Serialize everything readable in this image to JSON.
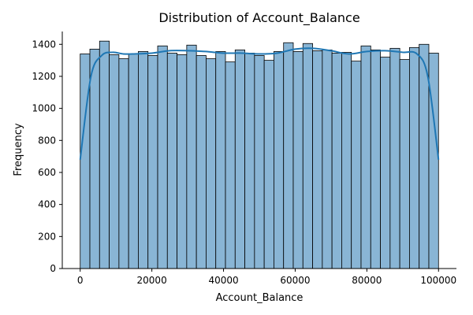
{
  "chart_data": {
    "type": "bar",
    "title": "Distribution of Account_Balance",
    "xlabel": "Account_Balance",
    "ylabel": "Frequency",
    "xlim": [
      -5000,
      105000
    ],
    "ylim": [
      0,
      1480
    ],
    "x_ticks": [
      0,
      20000,
      40000,
      60000,
      80000,
      100000
    ],
    "x_tick_labels": [
      "0",
      "20000",
      "40000",
      "60000",
      "80000",
      "100000"
    ],
    "y_ticks": [
      0,
      200,
      400,
      600,
      800,
      1000,
      1200,
      1400
    ],
    "y_tick_labels": [
      "0",
      "200",
      "400",
      "600",
      "800",
      "1000",
      "1200",
      "1400"
    ],
    "bin_start": 0,
    "bin_end": 100000,
    "values": [
      1340,
      1370,
      1420,
      1335,
      1310,
      1340,
      1355,
      1330,
      1390,
      1345,
      1335,
      1395,
      1330,
      1310,
      1355,
      1290,
      1365,
      1345,
      1330,
      1300,
      1355,
      1410,
      1355,
      1405,
      1360,
      1365,
      1345,
      1350,
      1295,
      1390,
      1365,
      1320,
      1375,
      1305,
      1380,
      1400,
      1345
    ],
    "kde": [
      [
        0,
        680
      ],
      [
        3000,
        1200
      ],
      [
        6000,
        1330
      ],
      [
        9000,
        1350
      ],
      [
        12000,
        1340
      ],
      [
        15000,
        1340
      ],
      [
        20000,
        1345
      ],
      [
        25000,
        1360
      ],
      [
        30000,
        1360
      ],
      [
        35000,
        1355
      ],
      [
        40000,
        1345
      ],
      [
        45000,
        1345
      ],
      [
        50000,
        1340
      ],
      [
        55000,
        1345
      ],
      [
        60000,
        1370
      ],
      [
        65000,
        1375
      ],
      [
        70000,
        1360
      ],
      [
        75000,
        1340
      ],
      [
        80000,
        1355
      ],
      [
        85000,
        1360
      ],
      [
        90000,
        1350
      ],
      [
        94000,
        1340
      ],
      [
        97000,
        1200
      ],
      [
        100000,
        680
      ]
    ],
    "grid": false,
    "colors": {
      "bar_fill": "#89b5d5",
      "bar_edge": "#000000",
      "kde_line": "#1f77b4"
    }
  }
}
